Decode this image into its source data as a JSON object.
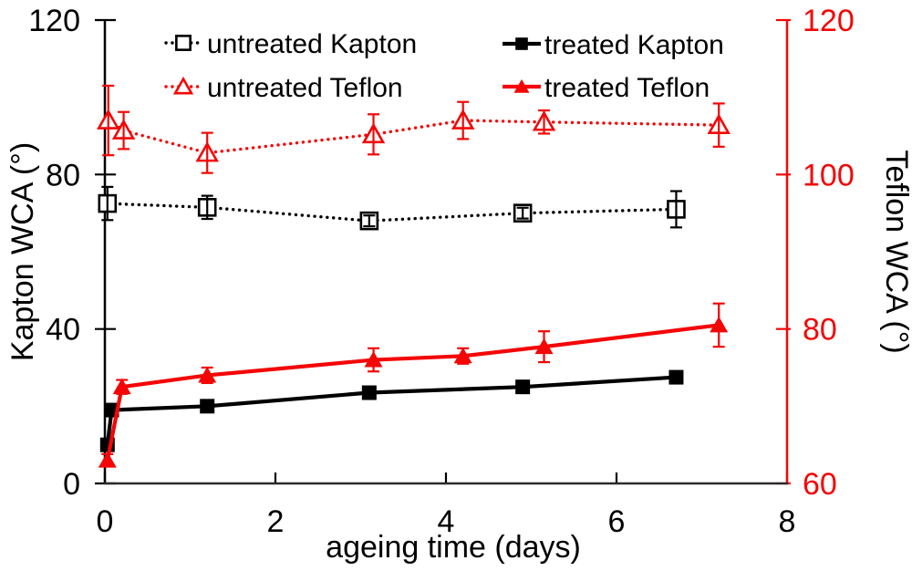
{
  "colors": {
    "black": "#000000",
    "red": "#f40606",
    "axis_line": "#2b2b2b"
  },
  "chart_data": {
    "type": "line",
    "title": "",
    "xlabel": "ageing time (days)",
    "ylabel_left": "Kapton WCA (°)",
    "ylabel_right": "Teflon WCA (°)",
    "x_range": [
      0,
      8
    ],
    "y_left_range": [
      0,
      120
    ],
    "y_right_range": [
      60,
      120
    ],
    "x_ticks": [
      0,
      2,
      4,
      6,
      8
    ],
    "y_left_ticks": [
      0,
      40,
      80,
      120
    ],
    "y_right_ticks": [
      60,
      80,
      100,
      120
    ],
    "grid": false,
    "legend_position": "top-inside-two-columns",
    "series": [
      {
        "name": "untreated Kapton",
        "axis": "left",
        "color": "#000000",
        "line_style": "dotted",
        "marker": "open-square",
        "x": [
          0.03,
          1.2,
          3.1,
          4.9,
          6.7
        ],
        "y": [
          72.5,
          71.5,
          68,
          70,
          71
        ],
        "y_err": [
          4.3,
          3,
          1.4,
          1.4,
          4.7
        ]
      },
      {
        "name": "untreated Teflon",
        "axis": "right",
        "color": "#f40606",
        "line_style": "dotted",
        "marker": "open-triangle",
        "x": [
          0.04,
          0.22,
          1.2,
          3.15,
          4.2,
          5.15,
          7.2
        ],
        "y": [
          107,
          105.7,
          102.8,
          105.2,
          107,
          106.8,
          106.4
        ],
        "y_err": [
          4.5,
          2.4,
          2.6,
          2.6,
          2.4,
          1.5,
          2.8
        ]
      },
      {
        "name": "treated Kapton",
        "axis": "left",
        "color": "#000000",
        "line_style": "solid",
        "marker": "filled-square",
        "x": [
          0.03,
          0.08,
          1.2,
          3.1,
          4.9,
          6.7
        ],
        "y": [
          10,
          19,
          20,
          23.5,
          25,
          27.5
        ],
        "y_err": [
          0.8,
          0.8,
          1,
          1,
          1.2,
          1.5
        ]
      },
      {
        "name": "treated Teflon",
        "axis": "right",
        "color": "#f40606",
        "line_style": "solid",
        "marker": "filled-triangle",
        "x": [
          0.03,
          0.2,
          1.2,
          3.15,
          4.2,
          5.15,
          7.2
        ],
        "y": [
          63,
          72.5,
          74,
          76,
          76.5,
          77.7,
          80.5
        ],
        "y_err": [
          0.8,
          0.9,
          1,
          1.5,
          1,
          2,
          2.8
        ]
      }
    ],
    "legend": [
      {
        "label": "untreated Kapton",
        "series": 0
      },
      {
        "label": "untreated Teflon",
        "series": 1
      },
      {
        "label": "treated Kapton",
        "series": 2
      },
      {
        "label": "treated Teflon",
        "series": 3
      }
    ]
  }
}
